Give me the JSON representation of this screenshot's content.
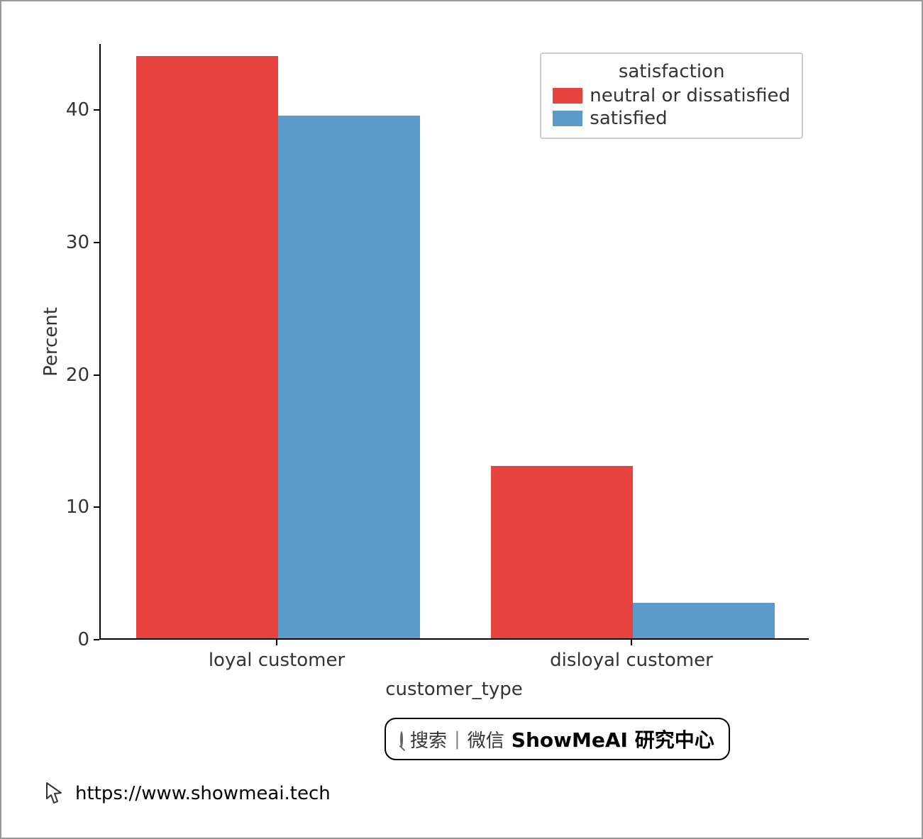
{
  "chart": {
    "type": "bar",
    "ylabel": "Percent",
    "xlabel": "customer_type",
    "categories": [
      "loyal customer",
      "disloyal customer"
    ],
    "series": [
      {
        "name": "neutral or dissatisfied",
        "color": "#e6433f",
        "values": [
          44.0,
          13.0
        ]
      },
      {
        "name": "satisfied",
        "color": "#5b9bc9",
        "values": [
          39.5,
          2.7
        ]
      }
    ],
    "ylim": [
      0,
      45
    ],
    "yticks": [
      0,
      10,
      20,
      30,
      40
    ],
    "ytick_labels": [
      "0",
      "10",
      "20",
      "30",
      "40"
    ],
    "tick_fontsize": 26,
    "label_fontsize": 26,
    "tick_color": "#333333",
    "axis_color": "#000000",
    "background_color": "#ffffff",
    "bar_group_width": 0.8,
    "legend": {
      "title": "satisfaction",
      "title_fontsize": 26,
      "item_fontsize": 26,
      "border_color": "#cccccc",
      "position": "upper right"
    }
  },
  "search_badge": {
    "text_cn1": "搜索",
    "divider": "|",
    "text_cn2": "微信",
    "brand": "ShowMeAI 研究中心",
    "fontsize_regular": 26,
    "fontsize_bold": 28
  },
  "footer": {
    "url": "https://www.showmeai.tech",
    "fontsize": 26
  }
}
